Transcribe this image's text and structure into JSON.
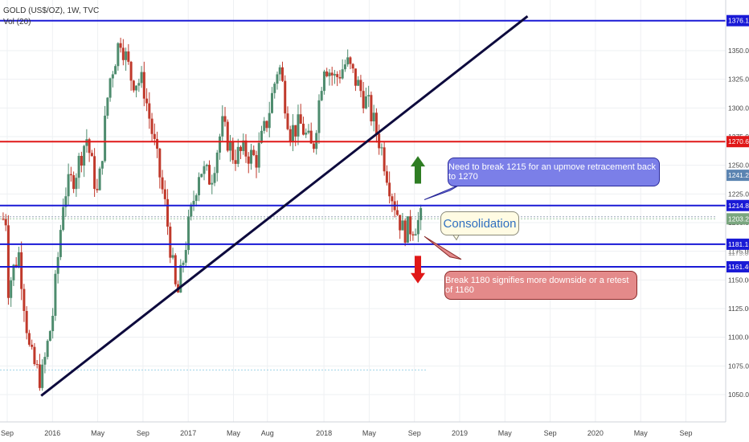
{
  "header": {
    "symbol_line": "GOLD (US$/OZ), 1W, TVC",
    "volume_label": "Vol (20)"
  },
  "chart_data": {
    "type": "candlestick",
    "title": "GOLD (US$/OZ), 1W, TVC",
    "ylim": [
      1040,
      1385
    ],
    "y_ticks": [
      1050,
      1075,
      1100,
      1125,
      1150,
      1175,
      1200,
      1225,
      1250,
      1275,
      1300,
      1325,
      1350
    ],
    "y_tick_labels": [
      "1050.00",
      "1075.00",
      "1100.00",
      "1125.00",
      "1150.00",
      "1175.00",
      "1200.00",
      "1225.00",
      "1250.00",
      "1275.00",
      "1300.00",
      "1325.00",
      "1350.00"
    ],
    "x_ticks": [
      "Sep",
      "2016",
      "May",
      "Sep",
      "2017",
      "May",
      "Aug",
      "2018",
      "May",
      "Sep",
      "2019",
      "May",
      "Sep",
      "2020",
      "May",
      "Sep"
    ],
    "price_anchors": [
      {
        "date": "2015-09",
        "price": 1140
      },
      {
        "date": "2015-10",
        "price": 1175
      },
      {
        "date": "2015-11",
        "price": 1085
      },
      {
        "date": "2015-12",
        "price": 1062
      },
      {
        "date": "2016-01",
        "price": 1118
      },
      {
        "date": "2016-02",
        "price": 1225
      },
      {
        "date": "2016-03",
        "price": 1242
      },
      {
        "date": "2016-04",
        "price": 1275
      },
      {
        "date": "2016-05",
        "price": 1222
      },
      {
        "date": "2016-06",
        "price": 1322
      },
      {
        "date": "2016-07",
        "price": 1362
      },
      {
        "date": "2016-08",
        "price": 1325
      },
      {
        "date": "2016-09",
        "price": 1322
      },
      {
        "date": "2016-10",
        "price": 1268
      },
      {
        "date": "2016-11",
        "price": 1212
      },
      {
        "date": "2016-12",
        "price": 1132
      },
      {
        "date": "2017-01",
        "price": 1195
      },
      {
        "date": "2017-02",
        "price": 1248
      },
      {
        "date": "2017-03",
        "price": 1238
      },
      {
        "date": "2017-04",
        "price": 1285
      },
      {
        "date": "2017-05",
        "price": 1258
      },
      {
        "date": "2017-06",
        "price": 1262
      },
      {
        "date": "2017-07",
        "price": 1255
      },
      {
        "date": "2017-08",
        "price": 1290
      },
      {
        "date": "2017-09",
        "price": 1340
      },
      {
        "date": "2017-10",
        "price": 1280
      },
      {
        "date": "2017-11",
        "price": 1285
      },
      {
        "date": "2017-12",
        "price": 1262
      },
      {
        "date": "2018-01",
        "price": 1340
      },
      {
        "date": "2018-02",
        "price": 1325
      },
      {
        "date": "2018-03",
        "price": 1340
      },
      {
        "date": "2018-04",
        "price": 1320
      },
      {
        "date": "2018-05",
        "price": 1300
      },
      {
        "date": "2018-06",
        "price": 1268
      },
      {
        "date": "2018-07",
        "price": 1225
      },
      {
        "date": "2018-08",
        "price": 1192
      },
      {
        "date": "2018-09",
        "price": 1198
      },
      {
        "date": "2018-09-20",
        "price": 1203.29
      }
    ],
    "trendline": {
      "start": {
        "date": "2015-12",
        "price": 1049
      },
      "end": {
        "date": "2019-07",
        "price": 1380
      }
    },
    "horizontal_levels": [
      {
        "price": 1376.15,
        "label": "1376.15",
        "color": "#1a1ad6"
      },
      {
        "price": 1270.64,
        "label": "1270.64",
        "color": "#e01818"
      },
      {
        "price": 1214.89,
        "label": "1214.89",
        "color": "#1a1ad6"
      },
      {
        "price": 1181.15,
        "label": "1181.15",
        "color": "#1a1ad6"
      },
      {
        "price": 1161.46,
        "label": "1161.46",
        "color": "#1a1ad6"
      }
    ],
    "price_badges": [
      {
        "price": 1241.28,
        "label": "1241.28",
        "color": "#5b84b1"
      },
      {
        "price": 1203.29,
        "label": "1203.29",
        "color": "#7aa67f"
      }
    ],
    "partial_tick_label": "1175.00",
    "colors": {
      "up": "#4e8c6e",
      "down": "#c0392b",
      "trendline": "#0d0a3d",
      "grid": "#eef0f3"
    }
  },
  "annotations": {
    "upmove_note": "Need to break 1215 for an upmove retracement back to 1270",
    "consolidation": "Consolidation",
    "downside_note": "Break 1180 signifies more downside or a retest of 1160"
  }
}
